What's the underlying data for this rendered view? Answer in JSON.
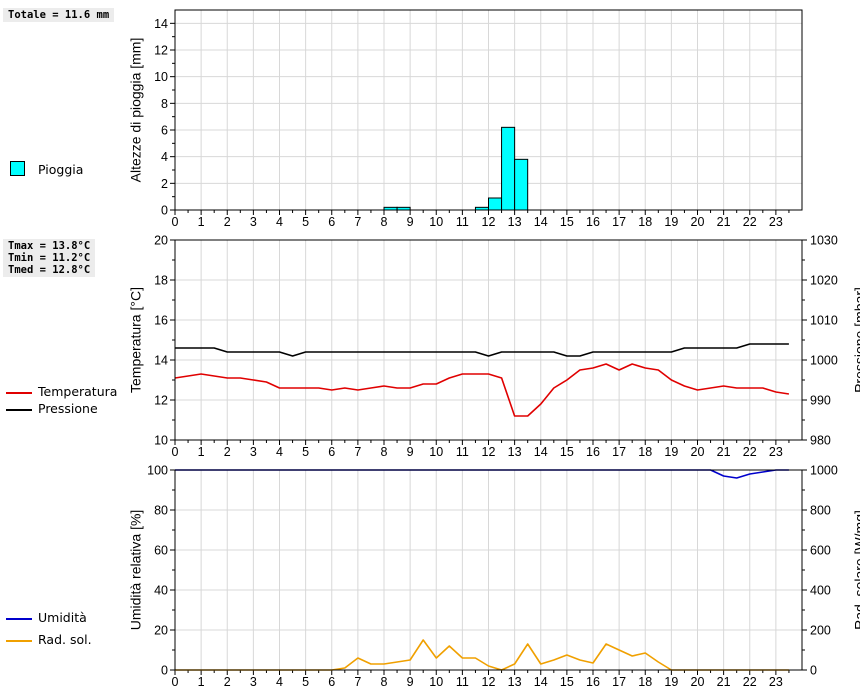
{
  "summary": {
    "rain_total": "Totale = 11.6 mm",
    "tmax": "Tmax = 13.8°C",
    "tmin": "Tmin = 11.2°C",
    "tmed": "Tmed = 12.8°C"
  },
  "colors": {
    "rain": "#00ffff",
    "temperature": "#e00000",
    "pressure": "#000000",
    "humidity": "#0000cc",
    "radiation": "#f0a000",
    "grid": "#d8d8d8"
  },
  "legend": {
    "rain": "Pioggia",
    "temperature": "Temperatura",
    "pressure": "Pressione",
    "humidity": "Umidità",
    "radiation": "Rad. sol."
  },
  "chart_data": [
    {
      "id": "rain",
      "type": "bar",
      "ylabel": "Altezze di pioggia [mm]",
      "ylim": [
        0,
        15
      ],
      "yticks": [
        0,
        2,
        4,
        6,
        8,
        10,
        12,
        14
      ],
      "xlim": [
        0,
        24
      ],
      "xticks": [
        0,
        1,
        2,
        3,
        4,
        5,
        6,
        7,
        8,
        9,
        10,
        11,
        12,
        13,
        14,
        15,
        16,
        17,
        18,
        19,
        20,
        21,
        22,
        23
      ],
      "bar_width": 0.5,
      "bars": [
        {
          "x": 8,
          "value": 0.2
        },
        {
          "x": 8.5,
          "value": 0.2
        },
        {
          "x": 11.5,
          "value": 0.2
        },
        {
          "x": 12,
          "value": 0.9
        },
        {
          "x": 12.5,
          "value": 6.2
        },
        {
          "x": 13,
          "value": 3.8
        }
      ]
    },
    {
      "id": "temp_pressure",
      "type": "line",
      "ylabel": "Temperatura [°C]",
      "ylim": [
        10,
        20
      ],
      "yticks": [
        10,
        12,
        14,
        16,
        18,
        20
      ],
      "y2label": "Pressione [mbar]",
      "y2lim": [
        980,
        1030
      ],
      "y2ticks": [
        980,
        990,
        1000,
        1010,
        1020,
        1030
      ],
      "xlim": [
        0,
        24
      ],
      "xticks": [
        0,
        1,
        2,
        3,
        4,
        5,
        6,
        7,
        8,
        9,
        10,
        11,
        12,
        13,
        14,
        15,
        16,
        17,
        18,
        19,
        20,
        21,
        22,
        23
      ],
      "series": [
        {
          "name": "Temperatura",
          "axis": "left",
          "x": [
            0,
            0.5,
            1,
            1.5,
            2,
            2.5,
            3,
            3.5,
            4,
            4.5,
            5,
            5.5,
            6,
            6.5,
            7,
            7.5,
            8,
            8.5,
            9,
            9.5,
            10,
            10.5,
            11,
            11.5,
            12,
            12.5,
            13,
            13.5,
            14,
            14.5,
            15,
            15.5,
            16,
            16.5,
            17,
            17.5,
            18,
            18.5,
            19,
            19.5,
            20,
            20.5,
            21,
            21.5,
            22,
            22.5,
            23,
            23.5
          ],
          "values": [
            13.1,
            13.2,
            13.3,
            13.2,
            13.1,
            13.1,
            13.0,
            12.9,
            12.6,
            12.6,
            12.6,
            12.6,
            12.5,
            12.6,
            12.5,
            12.6,
            12.7,
            12.6,
            12.6,
            12.8,
            12.8,
            13.1,
            13.3,
            13.3,
            13.3,
            13.1,
            11.2,
            11.2,
            11.8,
            12.6,
            13.0,
            13.5,
            13.6,
            13.8,
            13.5,
            13.8,
            13.6,
            13.5,
            13.0,
            12.7,
            12.5,
            12.6,
            12.7,
            12.6,
            12.6,
            12.6,
            12.4,
            12.3
          ]
        },
        {
          "name": "Pressione",
          "axis": "right",
          "x": [
            0,
            0.5,
            1,
            1.5,
            2,
            2.5,
            3,
            3.5,
            4,
            4.5,
            5,
            5.5,
            6,
            6.5,
            7,
            7.5,
            8,
            8.5,
            9,
            9.5,
            10,
            10.5,
            11,
            11.5,
            12,
            12.5,
            13,
            13.5,
            14,
            14.5,
            15,
            15.5,
            16,
            16.5,
            17,
            17.5,
            18,
            18.5,
            19,
            19.5,
            20,
            20.5,
            21,
            21.5,
            22,
            22.5,
            23,
            23.5
          ],
          "values": [
            1003,
            1003,
            1003,
            1003,
            1002,
            1002,
            1002,
            1002,
            1002,
            1001,
            1002,
            1002,
            1002,
            1002,
            1002,
            1002,
            1002,
            1002,
            1002,
            1002,
            1002,
            1002,
            1002,
            1002,
            1001,
            1002,
            1002,
            1002,
            1002,
            1002,
            1001,
            1001,
            1002,
            1002,
            1002,
            1002,
            1002,
            1002,
            1002,
            1003,
            1003,
            1003,
            1003,
            1003,
            1004,
            1004,
            1004,
            1004
          ]
        }
      ]
    },
    {
      "id": "humidity_radiation",
      "type": "line",
      "ylabel": "Umidità relativa [%]",
      "ylim": [
        0,
        100
      ],
      "yticks": [
        0,
        20,
        40,
        60,
        80,
        100
      ],
      "y2label": "Rad. solare [W/mq]",
      "y2lim": [
        0,
        1000
      ],
      "y2ticks": [
        0,
        200,
        400,
        600,
        800,
        1000
      ],
      "xlim": [
        0,
        24
      ],
      "xticks": [
        0,
        1,
        2,
        3,
        4,
        5,
        6,
        7,
        8,
        9,
        10,
        11,
        12,
        13,
        14,
        15,
        16,
        17,
        18,
        19,
        20,
        21,
        22,
        23
      ],
      "series": [
        {
          "name": "Umidità",
          "axis": "left",
          "x": [
            0,
            1,
            2,
            3,
            4,
            5,
            6,
            7,
            8,
            9,
            10,
            11,
            12,
            13,
            14,
            15,
            16,
            17,
            18,
            19,
            20,
            20.5,
            21,
            21.5,
            22,
            22.5,
            23,
            23.5
          ],
          "values": [
            100,
            100,
            100,
            100,
            100,
            100,
            100,
            100,
            100,
            100,
            100,
            100,
            100,
            100,
            100,
            100,
            100,
            100,
            100,
            100,
            100,
            100,
            97,
            96,
            98,
            99,
            100,
            100
          ]
        },
        {
          "name": "Rad. sol.",
          "axis": "right",
          "x": [
            0,
            0.5,
            1,
            1.5,
            2,
            2.5,
            3,
            3.5,
            4,
            4.5,
            5,
            5.5,
            6,
            6.5,
            7,
            7.5,
            8,
            8.5,
            9,
            9.5,
            10,
            10.5,
            11,
            11.5,
            12,
            12.5,
            13,
            13.5,
            14,
            14.5,
            15,
            15.5,
            16,
            16.5,
            17,
            17.5,
            18,
            18.5,
            19,
            19.5,
            20,
            20.5,
            21,
            21.5,
            22,
            22.5,
            23,
            23.5
          ],
          "values": [
            0,
            0,
            0,
            0,
            0,
            0,
            0,
            0,
            0,
            0,
            0,
            0,
            0,
            10,
            60,
            30,
            30,
            40,
            50,
            150,
            60,
            120,
            60,
            60,
            20,
            0,
            30,
            130,
            30,
            50,
            75,
            50,
            35,
            130,
            100,
            70,
            85,
            40,
            0,
            0,
            0,
            0,
            0,
            0,
            0,
            0,
            0,
            0
          ]
        }
      ]
    }
  ]
}
